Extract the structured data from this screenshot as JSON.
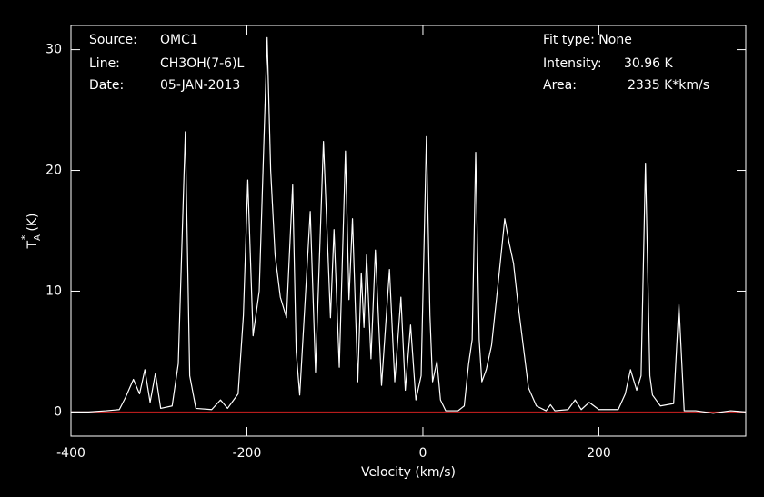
{
  "chart_data": {
    "type": "line",
    "annotations": {
      "source_label": "Source:",
      "source": "OMC1",
      "line_label": "Line:",
      "line": "CH3OH(7-6)L",
      "date_label": "Date:",
      "date": "05-JAN-2013",
      "fit": "Fit type: None",
      "intensity_label": "Intensity:",
      "intensity": "30.96 K",
      "area_label": "Area:",
      "area": "2335 K*km/s"
    },
    "x_label": "Velocity (km/s)",
    "y_label": {
      "main": "T",
      "sub": "A",
      "sup": "*",
      "unit": "(K)"
    },
    "xlim": [
      -400,
      367
    ],
    "xticks": [
      -400,
      -200,
      0,
      200
    ],
    "ylim": [
      -2,
      32
    ],
    "yticks": [
      0,
      10,
      20,
      30
    ],
    "baseline": {
      "value": 0,
      "color": "#d02020"
    },
    "series": [
      {
        "color": "#ffffff",
        "x": [
          -400,
          -380,
          -360,
          -345,
          -338,
          -329,
          -322,
          -316,
          -310,
          -304,
          -298,
          -285,
          -278,
          -270,
          -265,
          -258,
          -240,
          -230,
          -222,
          -210,
          -204,
          -199,
          -193,
          -186,
          -177,
          -173,
          -168,
          -162,
          -155,
          -148,
          -144,
          -140,
          -128,
          -122,
          -113,
          -105,
          -101,
          -95,
          -88,
          -84,
          -80,
          -74,
          -70,
          -67,
          -64,
          -59,
          -54,
          -47,
          -38,
          -32,
          -25,
          -20,
          -14,
          -8,
          -2,
          4,
          8,
          11,
          16,
          20,
          26,
          40,
          47,
          52,
          56,
          60,
          64,
          67,
          72,
          78,
          86,
          93,
          98,
          103,
          108,
          114,
          120,
          129,
          140,
          145,
          150,
          165,
          173,
          180,
          189,
          200,
          222,
          230,
          236,
          243,
          248,
          253,
          258,
          261,
          270,
          285,
          291,
          297,
          310,
          330,
          350,
          367
        ],
        "values": [
          0,
          0,
          0.1,
          0.2,
          1.2,
          2.7,
          1.5,
          3.5,
          0.8,
          3.2,
          0.3,
          0.5,
          4,
          23.2,
          3,
          0.3,
          0.2,
          1,
          0.3,
          1.5,
          8,
          19.2,
          6.3,
          10,
          31,
          20,
          13,
          9.5,
          7.8,
          18.8,
          5,
          1.4,
          16.6,
          3.3,
          22.4,
          7.8,
          15.1,
          3.7,
          21.6,
          9.3,
          16,
          2.5,
          11.5,
          7,
          13,
          4.4,
          13.4,
          2.2,
          11.8,
          2.5,
          9.5,
          1.8,
          7.2,
          1,
          3,
          22.8,
          8,
          2.5,
          4.2,
          1,
          0.1,
          0.1,
          0.5,
          4,
          6,
          21.5,
          6,
          2.5,
          3.5,
          5.5,
          11,
          16,
          14,
          12.3,
          9,
          5.5,
          2,
          0.5,
          0.1,
          0.6,
          0.1,
          0.2,
          1,
          0.2,
          0.8,
          0.2,
          0.2,
          1.5,
          3.5,
          1.8,
          3,
          20.6,
          3,
          1.4,
          0.5,
          0.7,
          8.9,
          0.1,
          0.1,
          -0.1,
          0.1,
          0
        ]
      }
    ]
  }
}
